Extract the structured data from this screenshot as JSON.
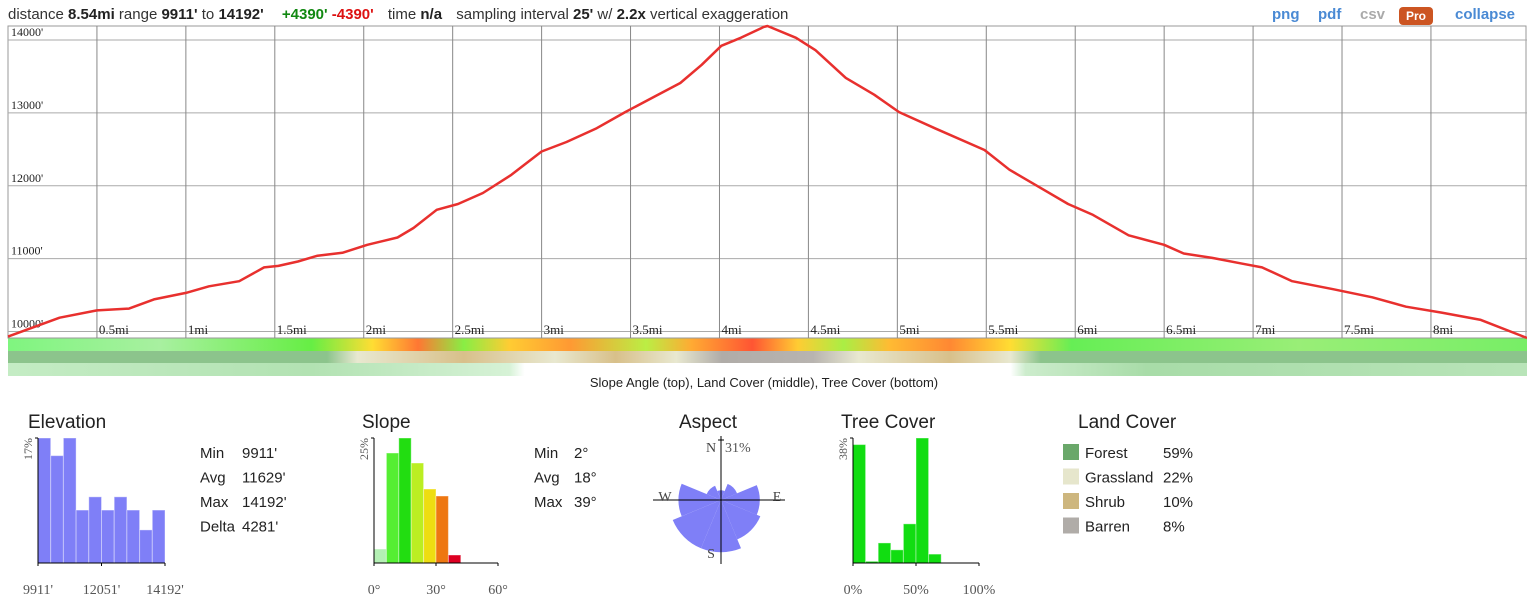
{
  "header": {
    "parts": [
      "distance",
      "8.54mi",
      "range",
      "9911'",
      "to",
      "14192'",
      "+4390'",
      "-4390'",
      "time",
      "n/a",
      "sampling interval",
      "25'",
      "w/",
      "2.2x",
      "vertical exaggeration"
    ]
  },
  "links": [
    "png",
    "pdf",
    "csv",
    "Pro",
    "collapse"
  ],
  "strips_caption": "Slope Angle (top), Land Cover (middle), Tree Cover (bottom)",
  "chart_data": [
    {
      "type": "line",
      "color": "#e8302e",
      "grid": true,
      "x": [
        0,
        0.29,
        0.5,
        0.68,
        0.82,
        1.0,
        1.13,
        1.3,
        1.44,
        1.52,
        1.63,
        1.74,
        1.88,
        2.02,
        2.19,
        2.28,
        2.41,
        2.53,
        2.67,
        2.83,
        3.0,
        3.14,
        3.31,
        3.47,
        3.64,
        3.78,
        3.9,
        4.01,
        4.12,
        4.25,
        4.27,
        4.43,
        4.54,
        4.71,
        4.87,
        5.01,
        5.21,
        5.49,
        5.63,
        5.82,
        5.96,
        6.1,
        6.3,
        6.5,
        6.61,
        6.77,
        6.94,
        7.05,
        7.22,
        7.45,
        7.67,
        7.86,
        8.06,
        8.28,
        8.54
      ],
      "values": [
        9930,
        10190,
        10290,
        10315,
        10440,
        10530,
        10620,
        10690,
        10880,
        10900,
        10960,
        11040,
        11080,
        11190,
        11290,
        11420,
        11670,
        11750,
        11900,
        12150,
        12470,
        12600,
        12790,
        13010,
        13230,
        13410,
        13660,
        13920,
        14030,
        14180,
        14192,
        14030,
        13860,
        13480,
        13250,
        13010,
        12790,
        12490,
        12220,
        11950,
        11750,
        11600,
        11320,
        11190,
        11070,
        11010,
        10930,
        10880,
        10690,
        10580,
        10470,
        10340,
        10260,
        10160,
        9911
      ],
      "xlim": [
        0,
        8.54
      ],
      "ylim": [
        9911,
        14192
      ],
      "xticks": [
        {
          "value": 0.5,
          "label": "0.5mi"
        },
        {
          "value": 1,
          "label": "1mi"
        },
        {
          "value": 1.5,
          "label": "1.5mi"
        },
        {
          "value": 2,
          "label": "2mi"
        },
        {
          "value": 2.5,
          "label": "2.5mi"
        },
        {
          "value": 3,
          "label": "3mi"
        },
        {
          "value": 3.5,
          "label": "3.5mi"
        },
        {
          "value": 4,
          "label": "4mi"
        },
        {
          "value": 4.5,
          "label": "4.5mi"
        },
        {
          "value": 5,
          "label": "5mi"
        },
        {
          "value": 5.5,
          "label": "5.5mi"
        },
        {
          "value": 6,
          "label": "6mi"
        },
        {
          "value": 6.5,
          "label": "6.5mi"
        },
        {
          "value": 7,
          "label": "7mi"
        },
        {
          "value": 7.5,
          "label": "7.5mi"
        },
        {
          "value": 8,
          "label": "8mi"
        }
      ],
      "yticks": [
        {
          "value": 10000,
          "label": "10000'"
        },
        {
          "value": 11000,
          "label": "11000'"
        },
        {
          "value": 12000,
          "label": "12000'"
        },
        {
          "value": 13000,
          "label": "13000'"
        },
        {
          "value": 14000,
          "label": "14000'"
        }
      ]
    },
    {
      "type": "histogram",
      "title": "Elevation",
      "color": "#7f7ff7",
      "bins": [
        9911,
        10339.1,
        10767.2,
        11195.3,
        11623.4,
        12051.5,
        12479.6,
        12907.7,
        13335.8,
        13763.9,
        14192
      ],
      "values": [
        17,
        14.6,
        17,
        7.2,
        9,
        7.2,
        9,
        7.2,
        4.5,
        7.2
      ],
      "xlim": [
        9911,
        14192
      ],
      "ylim": [
        0,
        17
      ],
      "xticks": [
        {
          "value": 9911,
          "label": "9911'"
        },
        {
          "value": 12051,
          "label": "12051'"
        },
        {
          "value": 14192,
          "label": "14192'"
        }
      ],
      "yticks": [
        {
          "value": 17,
          "label": "17%"
        }
      ]
    },
    {
      "type": "histogram",
      "title": "Slope",
      "colors": [
        "#b4f0b4",
        "#55ee33",
        "#22dd11",
        "#bbee22",
        "#eedd11",
        "#ee7711",
        "#dd0022"
      ],
      "bins": [
        0,
        6,
        12,
        18,
        24,
        30,
        36,
        42
      ],
      "values": [
        2.8,
        22,
        25,
        20,
        14.8,
        13.4,
        1.6
      ],
      "xlim": [
        0,
        60
      ],
      "ylim": [
        0,
        25
      ],
      "xticks": [
        {
          "value": 0,
          "label": "0°"
        },
        {
          "value": 30,
          "label": "30°"
        },
        {
          "value": 60,
          "label": "60°"
        }
      ],
      "yticks": [
        {
          "value": 25,
          "label": "25%"
        }
      ]
    },
    {
      "type": "polar",
      "title": "Aspect",
      "color": "#7f7ff7",
      "categories": [
        "N",
        null,
        "E",
        null,
        "S",
        null,
        "W",
        null
      ],
      "values": [
        5,
        9,
        20,
        22,
        27,
        27,
        22,
        8
      ],
      "rlim": [
        0,
        31
      ],
      "rticks": [
        {
          "value": 31,
          "label": "31%"
        }
      ]
    },
    {
      "type": "histogram",
      "title": "Tree Cover",
      "color": "#11dd11",
      "bins": [
        0,
        10,
        20,
        30,
        40,
        50,
        60,
        70
      ],
      "values": [
        36,
        0.5,
        6.1,
        4,
        11.9,
        38,
        2.7
      ],
      "xlim": [
        0,
        100
      ],
      "ylim": [
        0,
        38
      ],
      "xticks": [
        {
          "value": 0,
          "label": "0%"
        },
        {
          "value": 50,
          "label": "50%"
        },
        {
          "value": 100,
          "label": "100%"
        }
      ],
      "yticks": [
        {
          "value": 38,
          "label": "38%"
        }
      ]
    }
  ],
  "elevation_stats": [
    {
      "label": "Min",
      "value": "9911'"
    },
    {
      "label": "Avg",
      "value": "11629'"
    },
    {
      "label": "Max",
      "value": "14192'"
    },
    {
      "label": "Delta",
      "value": "4281'"
    }
  ],
  "slope_stats": [
    {
      "label": "Min",
      "value": "2°"
    },
    {
      "label": "Avg",
      "value": "18°"
    },
    {
      "label": "Max",
      "value": "39°"
    }
  ],
  "land_cover": {
    "title": "Land Cover",
    "rows": [
      {
        "name": "Forest",
        "color": "#6aa86a",
        "share": "59%"
      },
      {
        "name": "Grassland",
        "color": "#e6e6cc",
        "share": "22%"
      },
      {
        "name": "Shrub",
        "color": "#cdb67e",
        "share": "10%"
      },
      {
        "name": "Barren",
        "color": "#b0aca8",
        "share": "8%"
      }
    ]
  }
}
